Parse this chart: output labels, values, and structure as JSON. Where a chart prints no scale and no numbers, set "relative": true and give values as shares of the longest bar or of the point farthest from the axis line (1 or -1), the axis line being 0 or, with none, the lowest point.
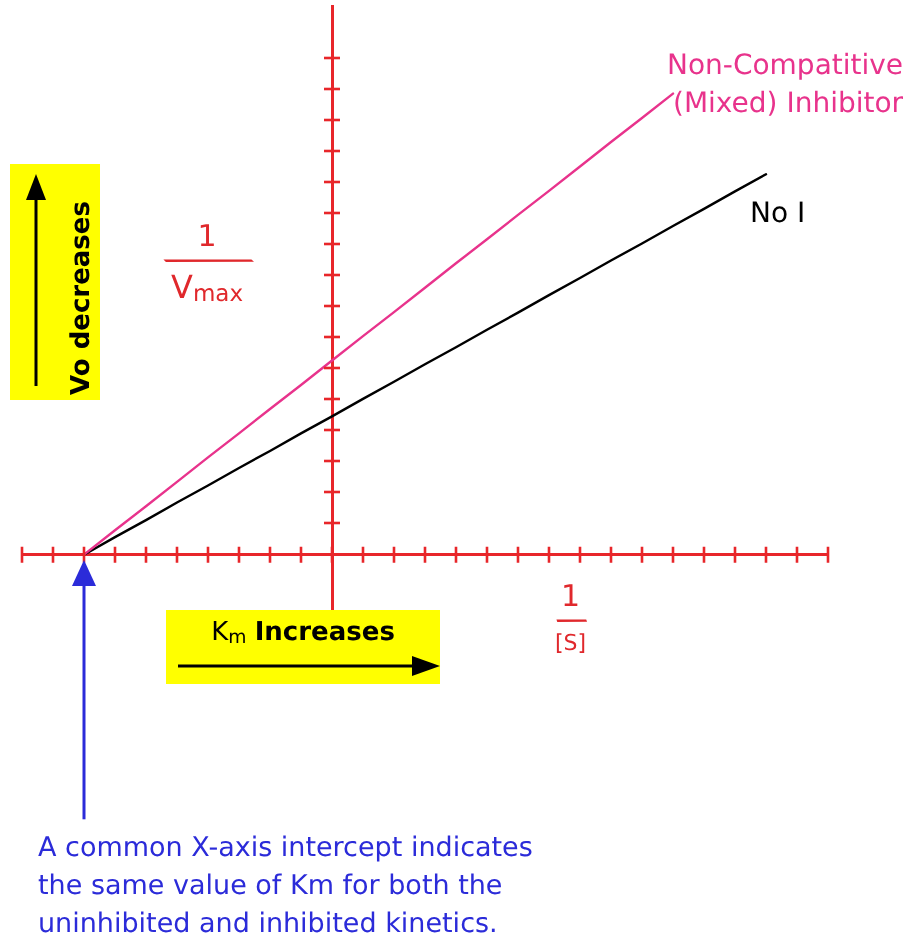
{
  "chart_data": {
    "type": "line",
    "relative": true,
    "xlabel": "1/[S]",
    "ylabel": "1/V$_{max}$",
    "categories": [
      null,
      null,
      null,
      null,
      null,
      null,
      null,
      null,
      null,
      null,
      null,
      null,
      null,
      null,
      null,
      null,
      null,
      null,
      null,
      null,
      null,
      null,
      null,
      null,
      null,
      null,
      null
    ],
    "series": [
      {
        "name": "Non-Compatitive (Mixed) Inhibitor",
        "color": "#e8338c",
        "values": [
          null,
          null,
          0,
          0.053,
          0.105,
          0.158,
          0.211,
          0.263,
          0.316,
          0.368,
          0.421,
          0.474,
          0.526,
          0.579,
          0.632,
          0.684,
          0.737,
          0.789,
          0.842,
          0.895,
          0.947,
          1,
          null,
          null,
          null,
          null,
          null
        ]
      },
      {
        "name": "No I",
        "color": "#000000",
        "values": [
          null,
          null,
          0,
          0.038,
          0.075,
          0.113,
          0.15,
          0.188,
          0.225,
          0.263,
          0.3,
          0.338,
          0.375,
          0.413,
          0.45,
          0.488,
          0.525,
          0.563,
          0.6,
          0.638,
          0.675,
          0.713,
          0.75,
          0.788,
          0.825,
          null,
          null
        ]
      }
    ],
    "annotations": [
      "Vo decreases",
      "K$_{m}$ Increases",
      "A common X-axis intercept indicates the same value of Km for both the uninhibited and inhibited kinetics."
    ]
  }
}
